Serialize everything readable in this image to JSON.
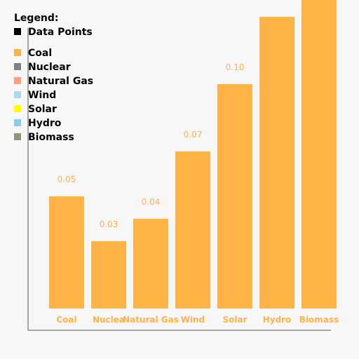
{
  "chart_data": {
    "type": "bar",
    "categories": [
      "Coal",
      "Nuclear",
      "Natural Gas",
      "Wind",
      "Solar",
      "Hydro",
      "Biomass"
    ],
    "values": [
      0.05,
      0.03,
      0.04,
      0.07,
      0.1,
      0.13,
      0.15
    ],
    "value_labels": [
      "0.05",
      "0.03",
      "0.04",
      "0.07",
      "0.10",
      "",
      ""
    ],
    "tick_labels": [
      "Coal",
      "Nuclea",
      "Natural Gas",
      "Wind",
      "Solar",
      "Hydro",
      "Biomass"
    ],
    "bar_color": "#FFB347",
    "legend": {
      "title": "Legend:",
      "placement": "top-left",
      "items": [
        {
          "label": "Data Points",
          "color": "#000000"
        },
        {
          "label": "Coal",
          "color": "#FFB347"
        },
        {
          "label": "Nuclear",
          "color": "#808080"
        },
        {
          "label": "Natural Gas",
          "color": "#FFA07A"
        },
        {
          "label": "Wind",
          "color": "#ADD8E6"
        },
        {
          "label": "Solar",
          "color": "#FFFF00"
        },
        {
          "label": "Hydro",
          "color": "#87CEEB"
        },
        {
          "label": "Biomass",
          "color": "#8F9779"
        }
      ]
    },
    "grid": false
  }
}
